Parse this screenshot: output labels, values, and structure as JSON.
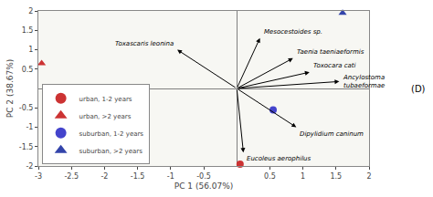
{
  "chart_data": {
    "type": "scatter",
    "x_label": "PC 1 (56.07%)",
    "y_label": "PC 2 (38.67%)",
    "xlim": [
      -3,
      2
    ],
    "ylim": [
      -2,
      2
    ],
    "xticks": [
      -3,
      -2.5,
      -2,
      -1.5,
      -1,
      -0.5,
      0.5,
      1,
      1.5,
      2
    ],
    "yticks": [
      -2,
      -1.5,
      -1,
      -0.5,
      0.5,
      1,
      1.5,
      2
    ],
    "grid": false,
    "legend": "lower left",
    "series": [
      {
        "name": "urban, 1-2 years",
        "color": "#cc3333",
        "marker": "circle",
        "x": [
          0.05
        ],
        "values": [
          -1.95
        ]
      },
      {
        "name": "urban, >2 years",
        "color": "#cc3333",
        "marker": "triangle",
        "x": [
          -2.95
        ],
        "values": [
          0.65
        ]
      },
      {
        "name": "suburban, 1-2 years",
        "color": "#4444cc",
        "marker": "circle",
        "x": [
          0.55
        ],
        "values": [
          -0.55
        ]
      },
      {
        "name": "suburban, >2 years",
        "color": "#3344aa",
        "marker": "triangle",
        "x": [
          1.6
        ],
        "values": [
          1.95
        ]
      }
    ],
    "arrows": [
      {
        "label": "Mesocestoides sp.",
        "x": 0.35,
        "y": 1.3
      },
      {
        "label": "Toxascaris leonina",
        "x": -0.9,
        "y": 1.0
      },
      {
        "label": "Taenia taeniaeformis",
        "x": 0.85,
        "y": 0.78
      },
      {
        "label": "Toxocara cati",
        "x": 1.1,
        "y": 0.42
      },
      {
        "label": "Ancylostoma\ntubaeformae",
        "x": 1.55,
        "y": 0.18
      },
      {
        "label": "Dipylidium caninum",
        "x": 0.9,
        "y": -1.0
      },
      {
        "label": "Eucoleus aerophilus",
        "x": 0.1,
        "y": -1.65
      }
    ],
    "annotations": [
      {
        "text": "(D)"
      }
    ]
  }
}
